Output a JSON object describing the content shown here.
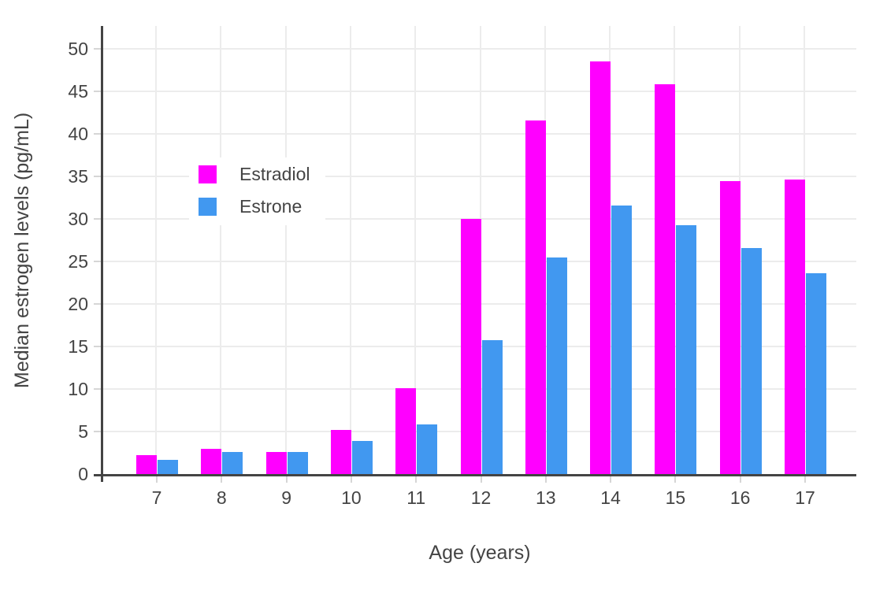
{
  "chart_data": {
    "type": "bar",
    "bar_layout": "grouped",
    "title": "",
    "xlabel": "Age (years)",
    "ylabel": "Median estrogen levels (pg/mL)",
    "categories": [
      "7",
      "8",
      "9",
      "10",
      "11",
      "12",
      "13",
      "14",
      "15",
      "16",
      "17"
    ],
    "series": [
      {
        "name": "Estradiol",
        "color": "#FF00FF",
        "values": [
          2.2,
          3.0,
          2.6,
          5.2,
          10.1,
          30.0,
          41.6,
          48.5,
          45.8,
          34.5,
          34.6
        ]
      },
      {
        "name": "Estrone",
        "color": "#4198F0",
        "values": [
          1.7,
          2.6,
          2.6,
          3.9,
          5.8,
          15.7,
          25.5,
          31.6,
          29.3,
          26.6,
          23.6
        ]
      }
    ],
    "ylim": [
      0,
      52.7
    ],
    "yticks": [
      0,
      5,
      10,
      15,
      20,
      25,
      30,
      35,
      40,
      45,
      50
    ],
    "grid": true,
    "legend_position": "inside-upper-left"
  },
  "colors": {
    "background": "#FFFFFF",
    "axis": "#444444",
    "tick": "#D6D6D6",
    "grid": "#ECECEC",
    "text": "#444444"
  }
}
